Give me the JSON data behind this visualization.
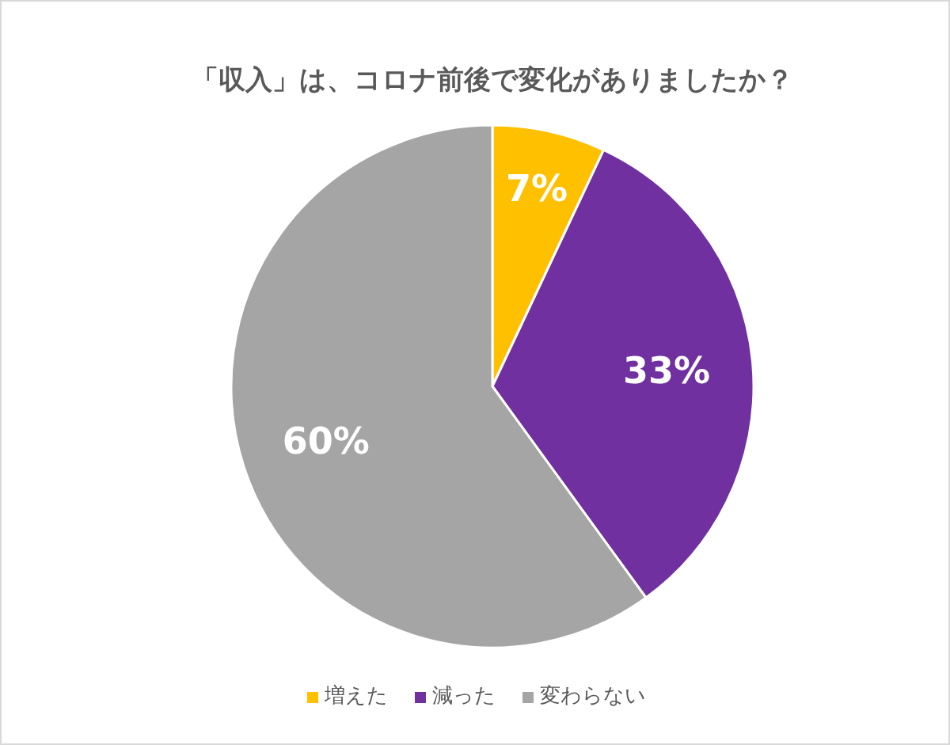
{
  "chart_data": {
    "type": "pie",
    "title": "「収入」は、コロナ前後で変化がありましたか？",
    "categories": [
      "増えた",
      "減った",
      "変わらない"
    ],
    "values": [
      7,
      33,
      60
    ],
    "colors": [
      "#ffc000",
      "#7030a0",
      "#a5a5a5"
    ],
    "value_labels": [
      "7%",
      "33%",
      "60%"
    ],
    "legend": "bottom"
  }
}
